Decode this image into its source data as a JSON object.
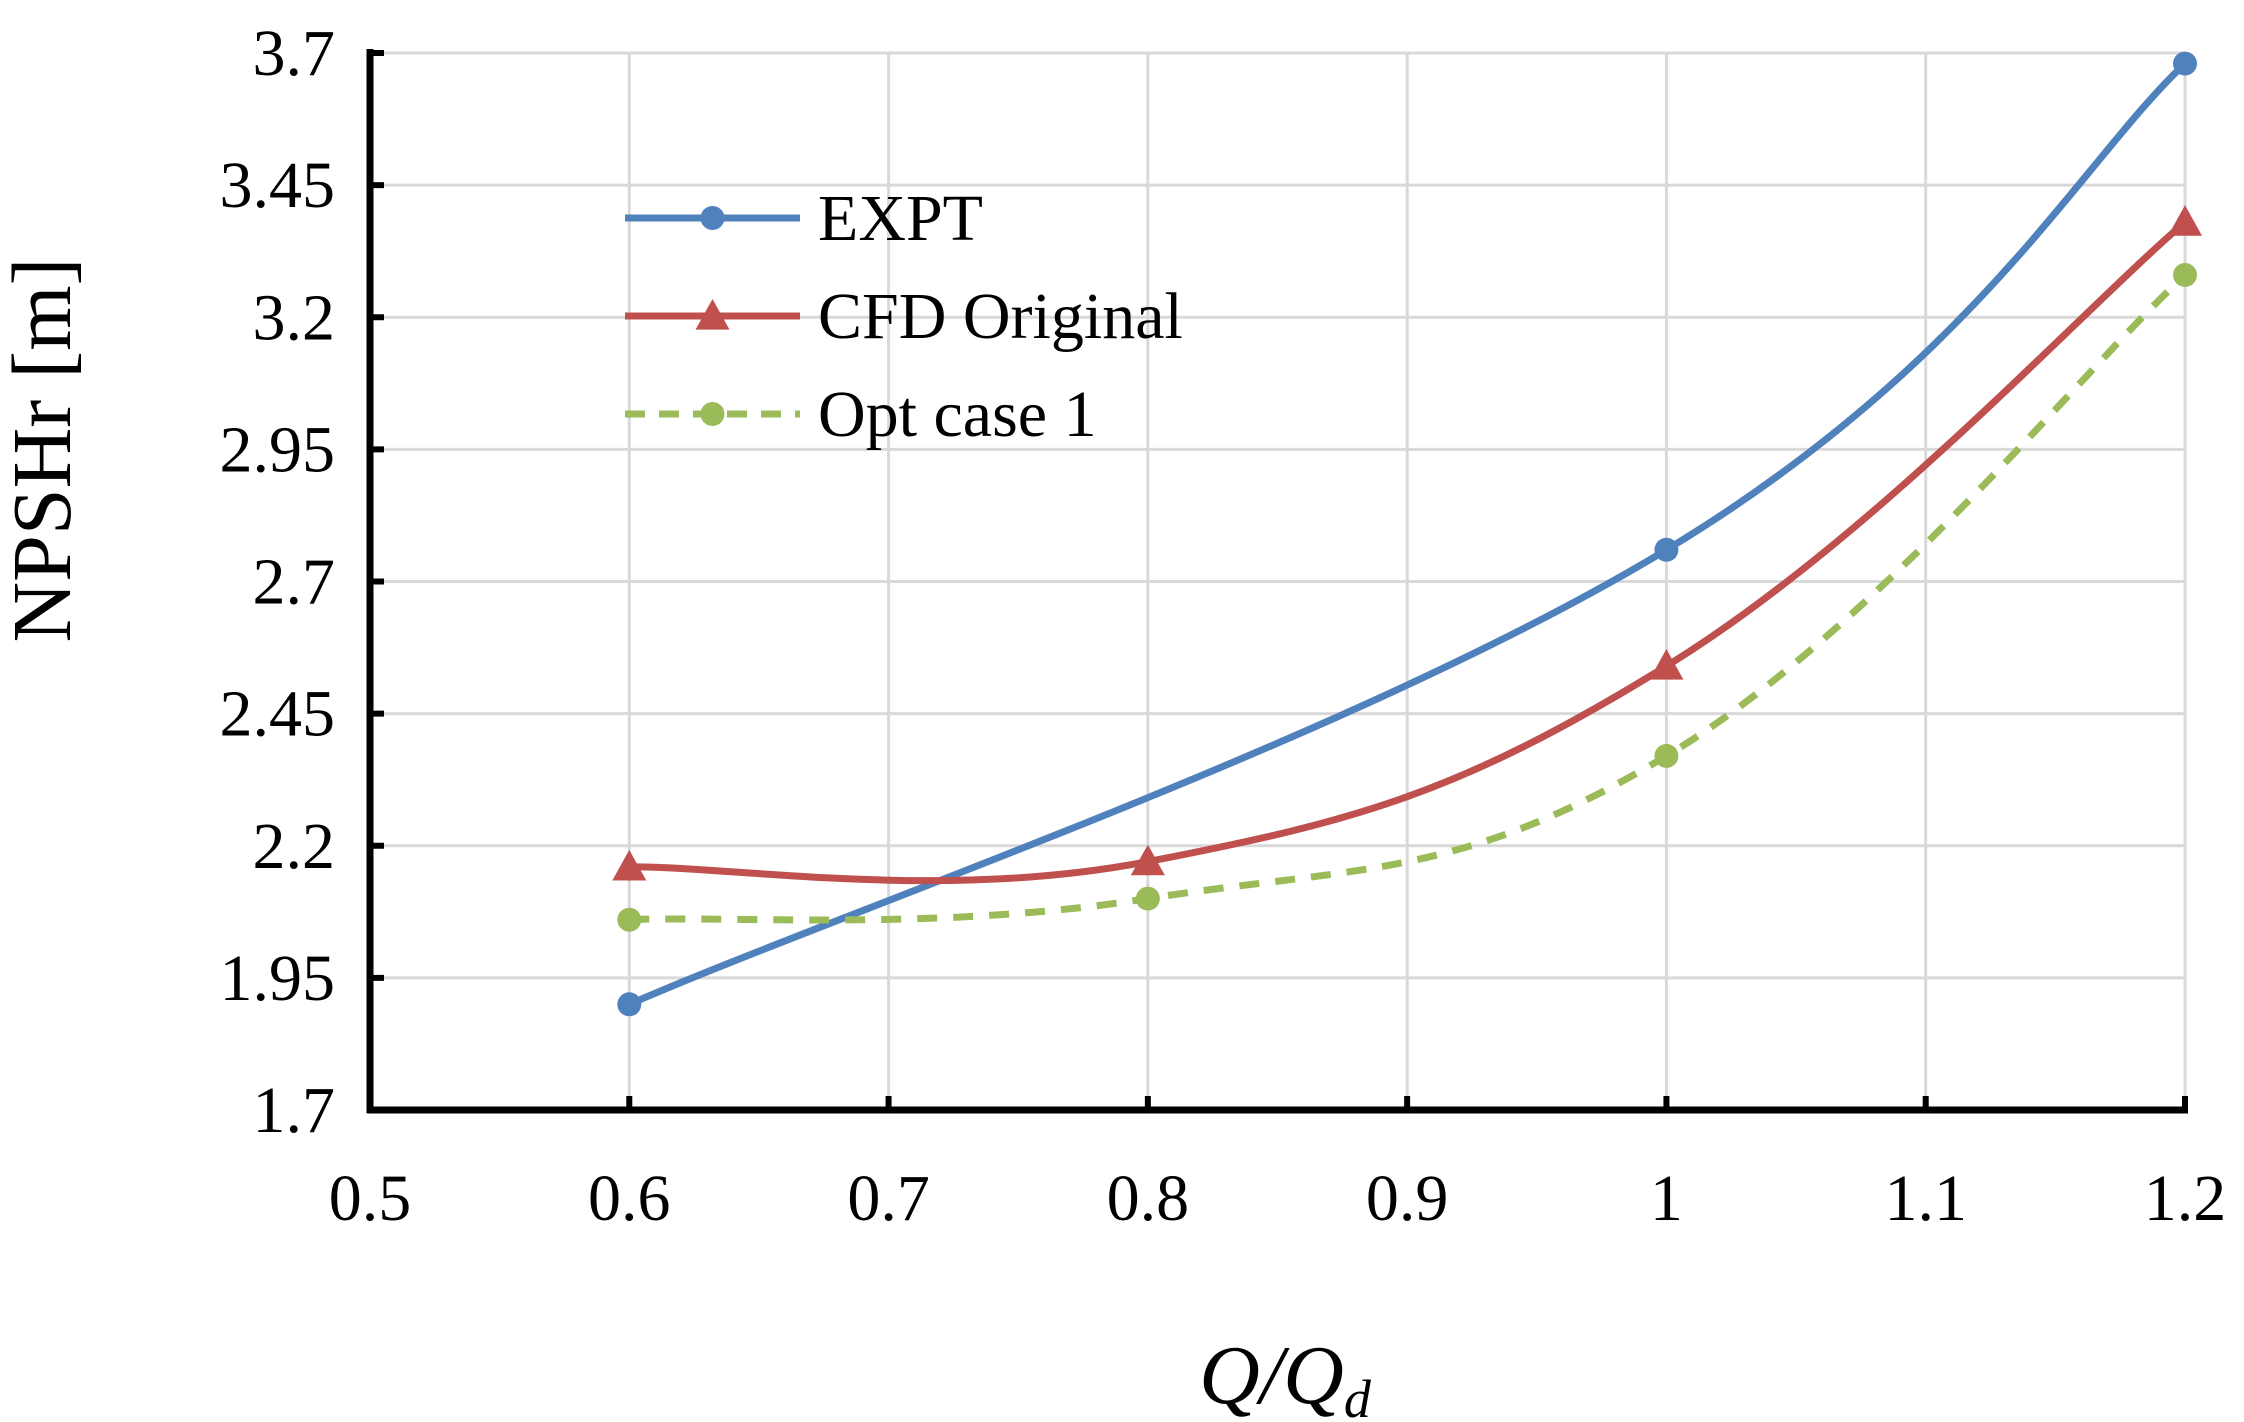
{
  "chart_data": {
    "type": "line",
    "title": "",
    "xlabel": "Q/Q",
    "xlabel_subscript": "d",
    "ylabel": "NPSHr [m]",
    "xlim": [
      0.5,
      1.2
    ],
    "ylim": [
      1.7,
      3.7
    ],
    "xticks": [
      0.5,
      0.6,
      0.7,
      0.8,
      0.9,
      1.0,
      1.1,
      1.2
    ],
    "yticks": [
      1.7,
      1.95,
      2.2,
      2.45,
      2.7,
      2.95,
      3.2,
      3.45,
      3.7
    ],
    "xtick_labels": [
      "0.5",
      "0.6",
      "0.7",
      "0.8",
      "0.9",
      "1",
      "1.1",
      "1.2"
    ],
    "ytick_labels": [
      "1.7",
      "1.95",
      "2.2",
      "2.45",
      "2.7",
      "2.95",
      "3.2",
      "3.45",
      "3.7"
    ],
    "grid": true,
    "legend_position": "top-left",
    "series": [
      {
        "name": "EXPT",
        "x": [
          0.6,
          1.0,
          1.2
        ],
        "values": [
          1.9,
          2.76,
          3.68
        ],
        "color": "#4f81bd",
        "marker": "circle",
        "line_style": "solid",
        "smooth": true
      },
      {
        "name": "CFD Original",
        "x": [
          0.6,
          0.8,
          1.0,
          1.2
        ],
        "values": [
          2.16,
          2.17,
          2.54,
          3.38
        ],
        "color": "#c0504d",
        "marker": "triangle",
        "line_style": "solid",
        "smooth": true
      },
      {
        "name": "Opt case 1",
        "x": [
          0.6,
          0.8,
          1.0,
          1.2
        ],
        "values": [
          2.06,
          2.1,
          2.37,
          3.28
        ],
        "color": "#9bbb59",
        "marker": "circle",
        "line_style": "dashed",
        "smooth": true
      }
    ]
  }
}
